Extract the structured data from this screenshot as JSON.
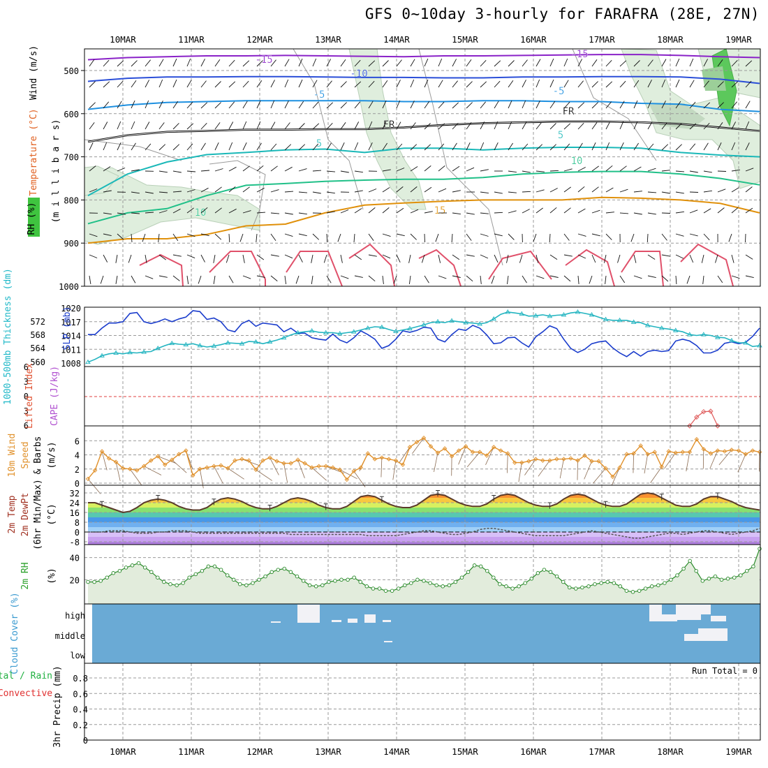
{
  "title": "GFS 0~10day 3-hourly for FARAFRA (28E, 27N)",
  "dates": [
    "10MAR",
    "11MAR",
    "12MAR",
    "13MAR",
    "14MAR",
    "15MAR",
    "16MAR",
    "17MAR",
    "18MAR",
    "19MAR"
  ],
  "colors": {
    "grid": "#999999",
    "frame": "#000000"
  },
  "chart_data": [
    {
      "type": "heatmap",
      "panel": "upper-air",
      "ylabel_parts": {
        "rh": "RH (%)",
        "temp": "Temperature (°C)",
        "wind": "Wind (m/s)",
        "unit": "(m i l l i b a r s)"
      },
      "y_ticks": [
        500,
        600,
        700,
        800,
        900,
        1000
      ],
      "temp_contour_labels": [
        "-15",
        "-10",
        "-5",
        "FR",
        "5",
        "10",
        "15"
      ],
      "temp_contours": [
        {
          "label": "-15",
          "color": "#8a22c8",
          "p": [
            475,
            470,
            468,
            466,
            466,
            465,
            466,
            467,
            468,
            466,
            466,
            465,
            464,
            463,
            463,
            465,
            468,
            470
          ]
        },
        {
          "label": "-10",
          "color": "#2a4ed8",
          "p": [
            525,
            518,
            515,
            515,
            514,
            514,
            515,
            516,
            516,
            517,
            517,
            515,
            515,
            514,
            514,
            515,
            520,
            530
          ]
        },
        {
          "label": "-5",
          "color": "#1e90e0",
          "p": [
            590,
            580,
            574,
            572,
            570,
            570,
            570,
            570,
            572,
            572,
            570,
            570,
            572,
            572,
            576,
            578,
            590,
            595
          ]
        },
        {
          "label": "FR",
          "color": "#000000",
          "p": [
            665,
            650,
            642,
            640,
            637,
            637,
            636,
            636,
            632,
            626,
            622,
            620,
            618,
            618,
            620,
            624,
            632,
            640
          ]
        },
        {
          "label": "5",
          "color": "#1ab8b8",
          "p": [
            790,
            740,
            712,
            695,
            690,
            684,
            682,
            690,
            680,
            680,
            684,
            680,
            678,
            678,
            680,
            690,
            696,
            700
          ]
        },
        {
          "label": "10",
          "color": "#20c088",
          "p": [
            855,
            830,
            820,
            790,
            766,
            762,
            757,
            754,
            752,
            752,
            748,
            740,
            736,
            734,
            734,
            740,
            750,
            765
          ]
        },
        {
          "label": "15",
          "color": "#e0900a",
          "p": [
            900,
            890,
            890,
            880,
            860,
            856,
            830,
            812,
            807,
            803,
            800,
            800,
            800,
            794,
            796,
            800,
            808,
            830
          ]
        }
      ],
      "wind_unit": "m/s"
    },
    {
      "type": "line",
      "panel": "thickness-slp",
      "ylabel_left": "1000-500mb Thickness (dm)",
      "ylabel_right": "SLP (mb)",
      "y_ticks_left": [
        560,
        564,
        568,
        572
      ],
      "y_ticks_right": [
        1008,
        1011,
        1014,
        1017,
        1020
      ],
      "series": [
        {
          "name": "SLP (mb)",
          "color": "#1a3ccc",
          "values": [
            1014.2,
            1014.2,
            1015.6,
            1016.7,
            1016.7,
            1017,
            1018.8,
            1019,
            1017,
            1016.6,
            1017,
            1017.6,
            1017,
            1017.6,
            1018,
            1019.4,
            1019.2,
            1017.5,
            1017.8,
            1017,
            1015.2,
            1014.8,
            1016.6,
            1017.3,
            1016,
            1016.7,
            1016.5,
            1016.3,
            1014.8,
            1015.6,
            1014.5,
            1014.5,
            1013.5,
            1013.2,
            1013,
            1014.3,
            1013,
            1012.4,
            1013.5,
            1015,
            1014.2,
            1013.2,
            1011.2,
            1011.8,
            1013.2,
            1015,
            1014.7,
            1015.1,
            1015.8,
            1015.6,
            1013.2,
            1012.6,
            1014.2,
            1015.4,
            1015.1,
            1016.2,
            1015.6,
            1014.1,
            1012.2,
            1012.4,
            1013.5,
            1013.6,
            1012.4,
            1011.5,
            1013.7,
            1014.8,
            1016.1,
            1015.5,
            1013.2,
            1011.2,
            1010.3,
            1011,
            1012.2,
            1012.6,
            1012.8,
            1011.3,
            1010.2,
            1009.4,
            1010.5,
            1009.5,
            1010.5,
            1010.8,
            1010.5,
            1010.7,
            1012.8,
            1013.2,
            1012.8,
            1011.8,
            1010.2,
            1010.2,
            1010.8,
            1012.3,
            1012.6,
            1012.2,
            1012.5,
            1013.8,
            1015.6
          ]
        },
        {
          "name": "1000-500mb Thickness (dm)",
          "color": "#22b4c0",
          "values": [
            1008.2,
            1008.8,
            1009.6,
            1010,
            1010.2,
            1010,
            1010.3,
            1010.2,
            1010.4,
            1010.5,
            1011.2,
            1011.8,
            1012.3,
            1012.1,
            1012,
            1012.2,
            1011.8,
            1011.5,
            1011.7,
            1012,
            1012.4,
            1012.3,
            1012.2,
            1012.7,
            1012.6,
            1012.2,
            1012.6,
            1013,
            1013.5,
            1014.1,
            1014.6,
            1014.8,
            1015,
            1014.7,
            1014.6,
            1014.6,
            1014.4,
            1014.6,
            1014.8,
            1015.2,
            1015.6,
            1015.9,
            1015.8,
            1015.3,
            1014.9,
            1015.2,
            1015.5,
            1015.9,
            1016.3,
            1016.8,
            1017,
            1016.8,
            1017.2,
            1017,
            1016.8,
            1016.7,
            1016.5,
            1016.8,
            1017.6,
            1018.6,
            1019.1,
            1018.9,
            1018.7,
            1018.2,
            1018.3,
            1018.5,
            1018.2,
            1018.4,
            1018.5,
            1018.9,
            1019.1,
            1018.8,
            1018.5,
            1018,
            1017.5,
            1017.3,
            1017.3,
            1017.3,
            1016.9,
            1016.8,
            1016.2,
            1015.9,
            1015.6,
            1015.4,
            1015.1,
            1014.8,
            1014.2,
            1014,
            1014.2,
            1014,
            1013.6,
            1013.5,
            1012.9,
            1012.4,
            1012.4,
            1011.6,
            1011.8
          ]
        }
      ]
    },
    {
      "type": "line",
      "panel": "cape-li",
      "ylabel_left": "Lifted Index",
      "ylabel_right": "CAPE (J/kg)",
      "y_ticks": [
        -6,
        -3,
        0,
        3,
        6
      ],
      "y_tick_labels": [
        "6",
        "3",
        "0",
        "3",
        "6"
      ],
      "series": [
        {
          "name": "Lifted Index",
          "color": "#e06060",
          "segment_start": 86,
          "values": [
            6,
            4.2,
            3.1,
            3,
            6
          ]
        }
      ]
    },
    {
      "type": "line",
      "panel": "wind10m",
      "ylabel": "10m Wind Speed (m/s) & Barbs",
      "y_ticks": [
        0,
        2,
        4,
        6
      ],
      "series": [
        {
          "name": "10m Wind Speed",
          "color": "#e0902a",
          "values": [
            0.6,
            1.8,
            4.5,
            3.5,
            3,
            2.1,
            2,
            1.8,
            2.4,
            3.2,
            3.8,
            2.6,
            3.3,
            4.1,
            4.6,
            1.1,
            2,
            2.2,
            2.4,
            2.5,
            2.1,
            3.2,
            3.4,
            3.2,
            1.9,
            3.2,
            3.6,
            3.1,
            2.8,
            2.8,
            3.3,
            2.8,
            2.2,
            2.4,
            2.4,
            2.2,
            1.9,
            0.5,
            1.7,
            2.2,
            4.2,
            3.4,
            3.6,
            3.4,
            3.2,
            2.6,
            5.1,
            5.8,
            6.4,
            5.2,
            4.3,
            4.9,
            3.8,
            4.6,
            5.2,
            4.4,
            4.4,
            3.9,
            5.1,
            4.6,
            4.2,
            2.9,
            2.9,
            3.1,
            3.4,
            3.2,
            3.2,
            3.4,
            3.4,
            3.5,
            3.2,
            3.9,
            3.1,
            3.1,
            2.1,
            0.9,
            2.2,
            4.1,
            4.2,
            5.3,
            4.1,
            4.4,
            2.3,
            4.5,
            4.3,
            4.4,
            4.4,
            6.2,
            4.8,
            4.2,
            4.6,
            4.5,
            4.7,
            4.6,
            4.1,
            4.6,
            4.4
          ]
        }
      ]
    },
    {
      "type": "area",
      "panel": "temp2m",
      "ylabel": "2m Temp 2m DewPt (6hr Min/Max) (°C)",
      "y_ticks": [
        -8,
        0,
        8,
        16,
        24,
        32
      ],
      "series": [
        {
          "name": "2m Temp",
          "color": "#5a3a2a",
          "values": [
            24,
            24,
            22,
            20,
            18,
            16,
            17,
            20,
            24,
            26,
            27,
            26,
            24,
            21,
            19,
            18,
            18,
            20,
            24,
            27,
            28,
            27,
            25,
            22,
            20,
            19,
            19,
            21,
            24,
            27,
            28,
            27,
            25,
            22,
            20,
            19,
            19,
            21,
            25,
            29,
            30,
            29,
            26,
            23,
            21,
            20,
            20,
            22,
            26,
            30,
            31,
            30,
            27,
            24,
            22,
            21,
            21,
            23,
            27,
            30,
            31,
            30,
            27,
            24,
            22,
            21,
            21,
            23,
            27,
            30,
            31,
            30,
            27,
            24,
            22,
            21,
            21,
            23,
            27,
            31,
            32,
            31,
            28,
            25,
            22,
            21,
            21,
            23,
            27,
            29,
            29,
            27,
            25,
            22,
            20,
            19,
            18
          ]
        },
        {
          "name": "2m DewPt",
          "color": "#555555",
          "values": [
            0,
            0,
            0,
            1,
            1,
            1,
            0,
            -1,
            -1,
            -1,
            0,
            0,
            1,
            1,
            1,
            0,
            -1,
            -1,
            -1,
            -1,
            -1,
            -1,
            -1,
            -1,
            -1,
            -1,
            -1,
            -1,
            -1,
            -2,
            -2,
            -2,
            -2,
            -2,
            -2,
            -2,
            -2,
            -2,
            -2,
            -2,
            -3,
            -3,
            -3,
            -3,
            -3,
            -2,
            -1,
            0,
            1,
            1,
            0,
            -1,
            -2,
            -2,
            -1,
            0,
            2,
            3,
            3,
            2,
            1,
            0,
            -1,
            -2,
            -3,
            -3,
            -3,
            -3,
            -3,
            -2,
            -1,
            0,
            1,
            0,
            -1,
            -2,
            -3,
            -4,
            -5,
            -5,
            -4,
            -3,
            -2,
            -1,
            -1,
            -2,
            -1,
            0,
            1,
            1,
            0,
            -1,
            -2,
            -1,
            0,
            1,
            3
          ]
        }
      ]
    },
    {
      "type": "area",
      "panel": "rh2m",
      "ylabel": "2m RH (%)",
      "y_ticks": [
        20,
        40
      ],
      "series": [
        {
          "name": "2m RH",
          "color": "#2a8a2a",
          "values": [
            18,
            18,
            19,
            22,
            26,
            28,
            31,
            33,
            35,
            31,
            27,
            22,
            18,
            16,
            15,
            17,
            22,
            25,
            28,
            32,
            32,
            29,
            24,
            20,
            16,
            15,
            17,
            20,
            23,
            27,
            29,
            30,
            27,
            23,
            19,
            15,
            14,
            15,
            18,
            19,
            20,
            20,
            22,
            18,
            14,
            12,
            12,
            10,
            10,
            12,
            15,
            17,
            20,
            19,
            17,
            15,
            14,
            15,
            18,
            22,
            27,
            33,
            32,
            28,
            22,
            16,
            14,
            12,
            14,
            17,
            21,
            26,
            29,
            27,
            23,
            18,
            13,
            12,
            13,
            14,
            16,
            17,
            18,
            17,
            14,
            10,
            9,
            10,
            12,
            14,
            15,
            17,
            20,
            24,
            30,
            37,
            28,
            19,
            21,
            23,
            20,
            21,
            22,
            24,
            28,
            32,
            48
          ]
        }
      ]
    },
    {
      "type": "heatmap",
      "panel": "cloud",
      "ylabel": "Cloud Cover (%)",
      "levels": [
        "high",
        "middle",
        "low"
      ]
    },
    {
      "type": "bar",
      "panel": "precip",
      "ylabel_parts": {
        "total": "Total / Rain",
        "conv": "Convective",
        "y": "3hr Precip (mm)"
      },
      "y_ticks": [
        0,
        0.2,
        0.4,
        0.6,
        0.8
      ],
      "y_tick_labels": [
        "0",
        "0.2",
        "0.4",
        "0.6",
        "0.8"
      ],
      "run_total_label": "Run Total = 0",
      "values": []
    }
  ]
}
